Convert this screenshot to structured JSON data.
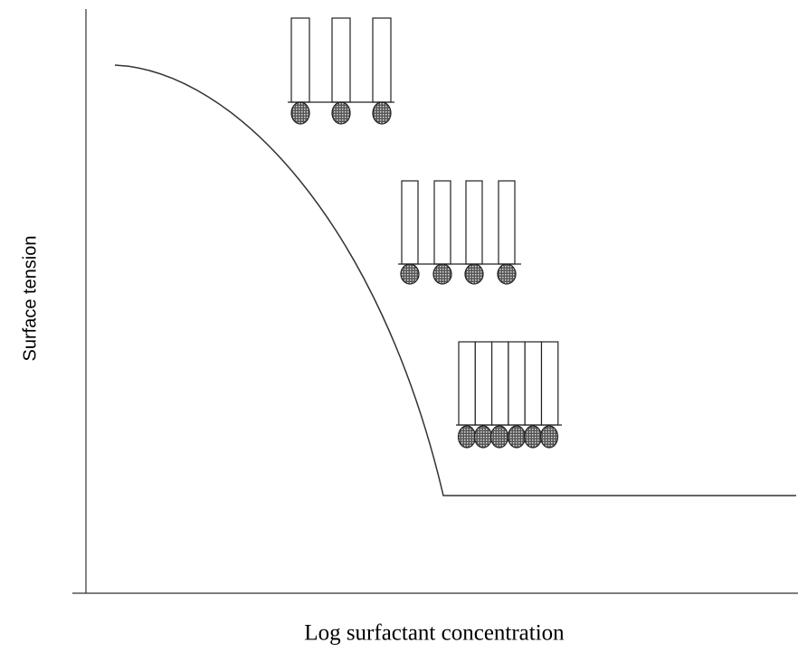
{
  "x_axis_label": "Log surfactant concentration",
  "y_axis_label": "Surface tension"
}
